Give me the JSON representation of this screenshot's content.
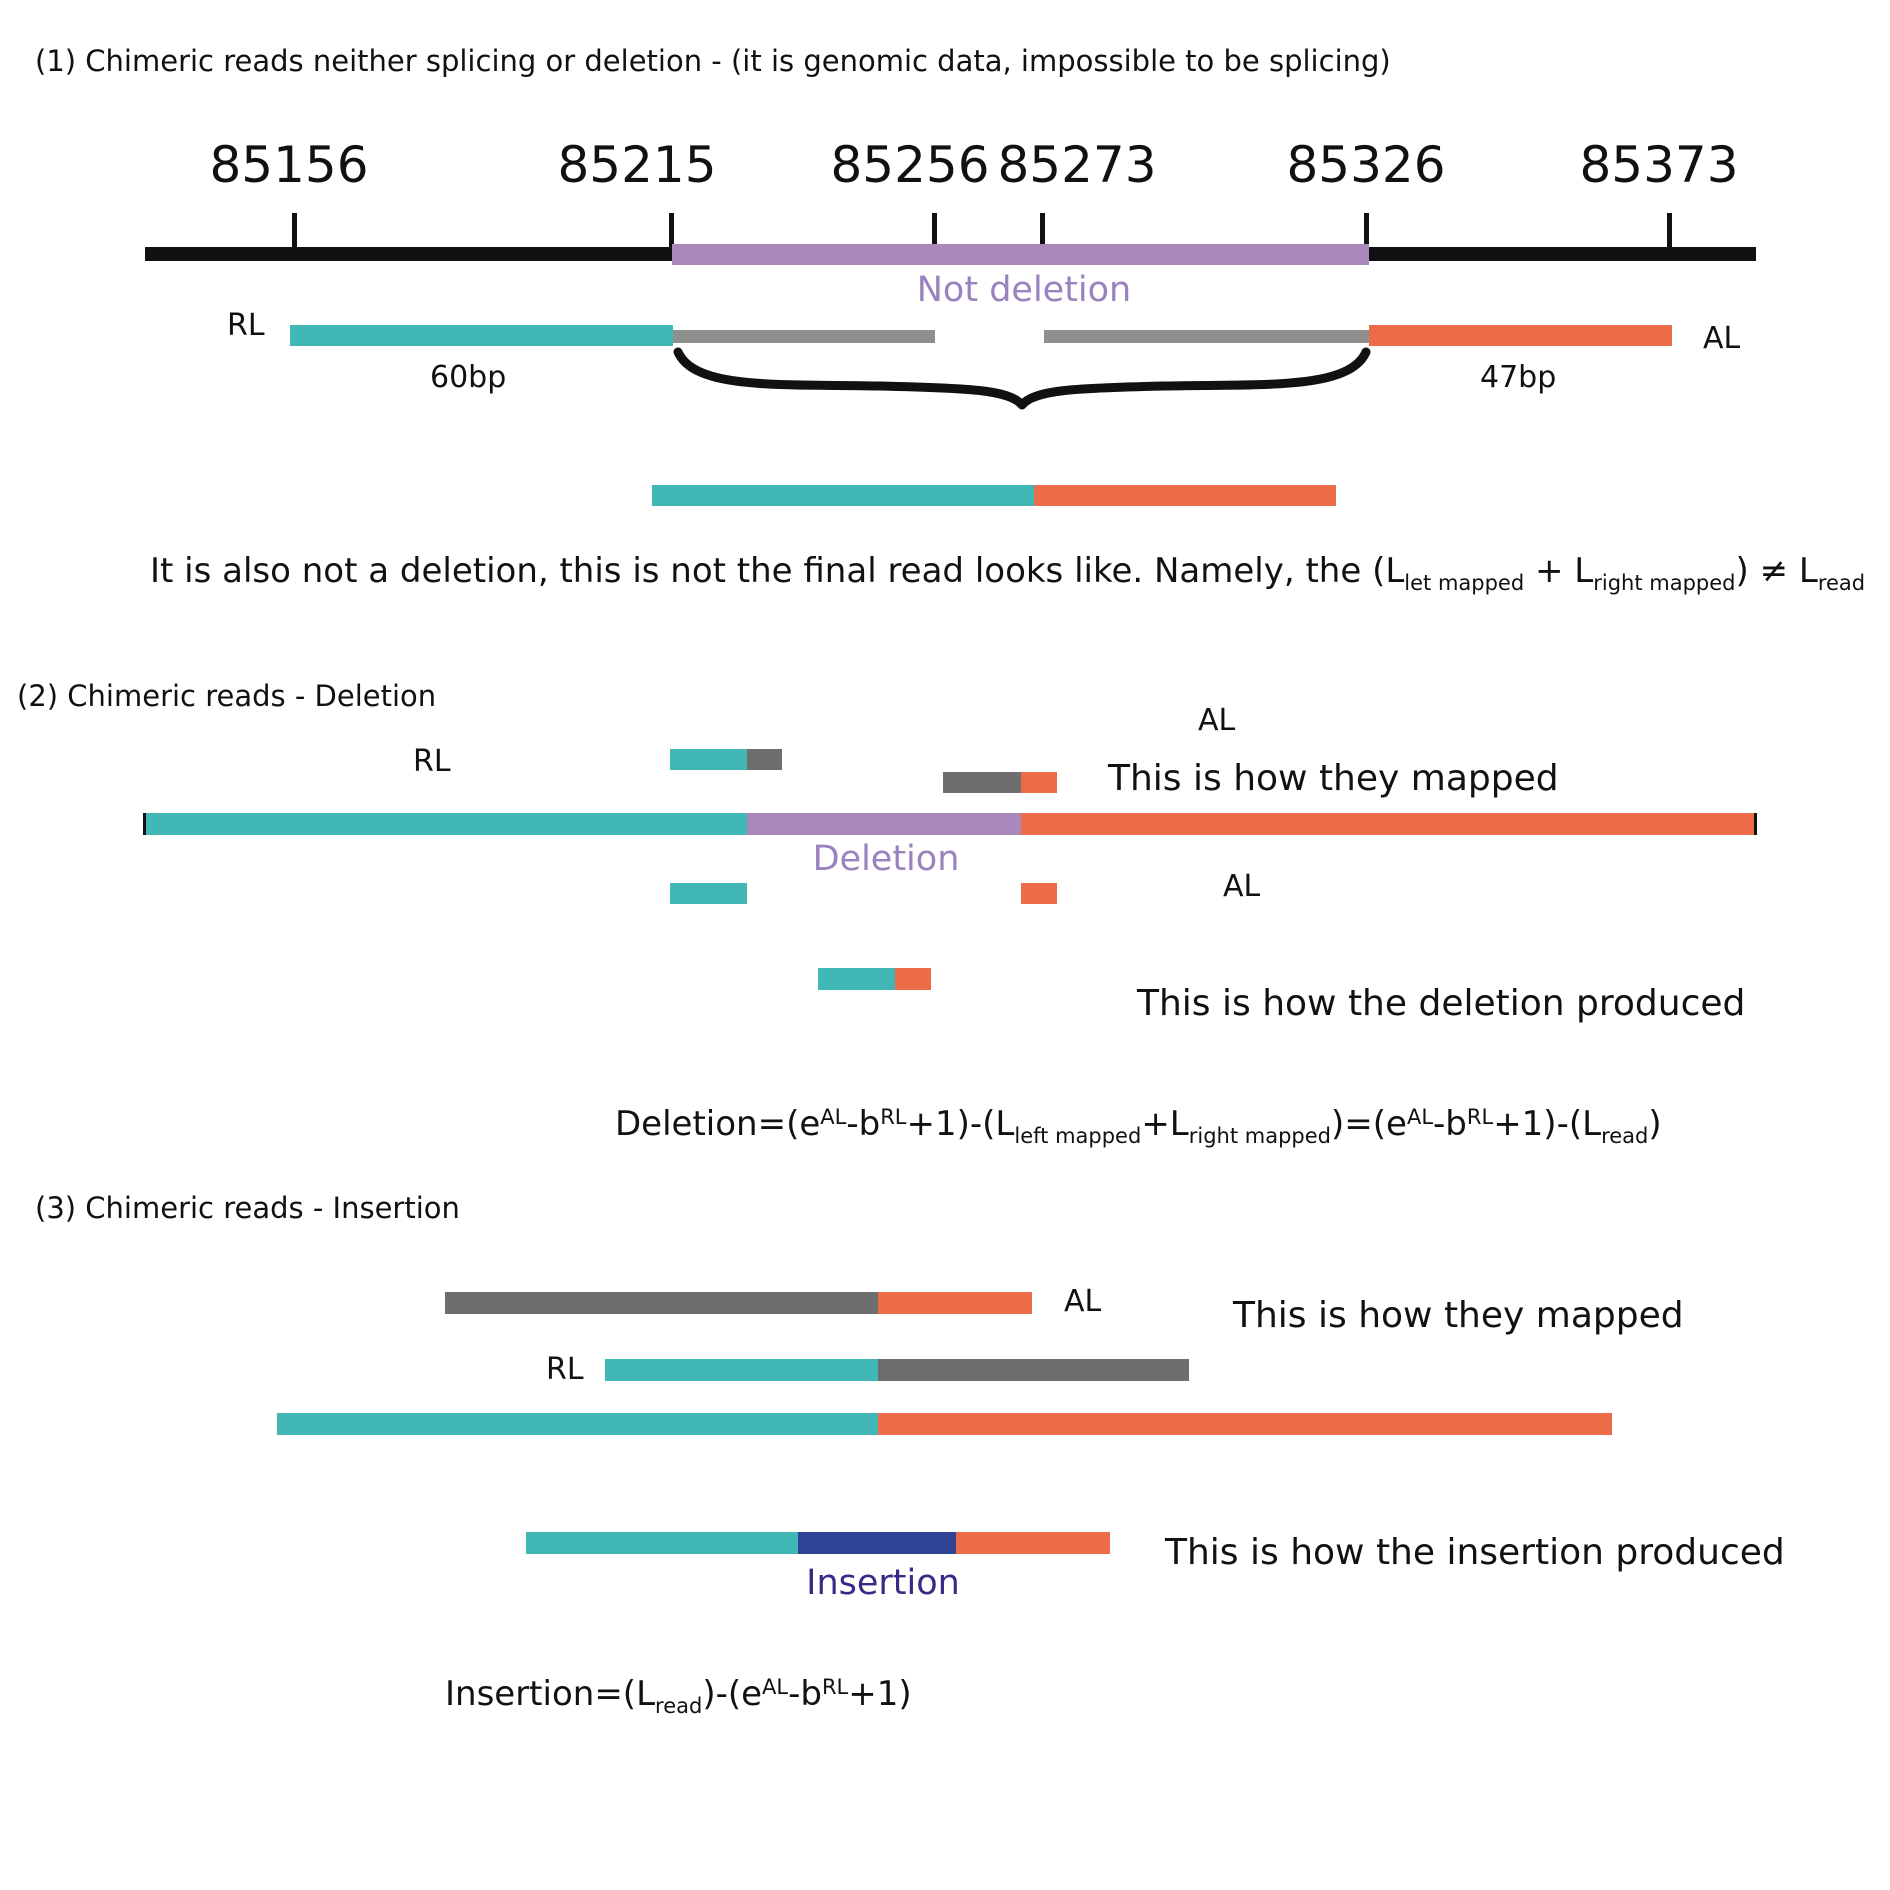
{
  "colors": {
    "teal": "#41b8b5",
    "orange": "#ec6c4a",
    "gray": "#8f8f8f",
    "dark_gray": "#6e6e6e",
    "purple": "#ab88bb",
    "purple_text": "#9a82be",
    "navy": "#2f4394",
    "navy_text": "#3a2a86",
    "black": "#111111"
  },
  "section1": {
    "title": "(1) Chimeric reads neither splicing or deletion - (it is genomic data, impossible to be splicing)",
    "positions": [
      "85156",
      "85215",
      "85256",
      "85273",
      "85326",
      "85373"
    ],
    "not_deletion_label": "Not deletion",
    "rl_label": "RL",
    "al_label": "AL",
    "left_len": "60bp",
    "right_len": "47bp",
    "note": {
      "pre": "It is also not a deletion, this is not the final read looks like. Namely, the (L",
      "sub1": "let mapped",
      "mid1": " + L",
      "sub2": "right mapped",
      "mid2": ") ≠ L",
      "sub3": "read"
    }
  },
  "section2": {
    "title": "(2) Chimeric reads - Deletion",
    "rl_label": "RL",
    "al_label_top": "AL",
    "al_label_bottom": "AL",
    "mapped_caption": "This is how they mapped",
    "deletion_label": "Deletion",
    "produced_caption": "This is how the deletion produced",
    "formula": {
      "a": "Deletion=(e",
      "sup_al": "AL",
      "b": "-b",
      "sup_rl": "RL",
      "c": "+1)-(L",
      "sub_left": "left mapped",
      "d": "+L",
      "sub_right": "right mapped",
      "e": ")=(e",
      "sup_al2": "AL",
      "f": "-b",
      "sup_rl2": "RL",
      "g": "+1)-(L",
      "sub_read": "read",
      "h": ")"
    }
  },
  "section3": {
    "title": "(3) Chimeric reads - Insertion",
    "al_label": "AL",
    "rl_label": "RL",
    "mapped_caption": "This is how they mapped",
    "insertion_label": "Insertion",
    "produced_caption": "This is how the insertion produced",
    "formula": {
      "a": "Insertion=(L",
      "sub_read": "read",
      "b": ")-(e",
      "sup_al": "AL",
      "c": "-b",
      "sup_rl": "RL",
      "d": "+1)"
    }
  }
}
